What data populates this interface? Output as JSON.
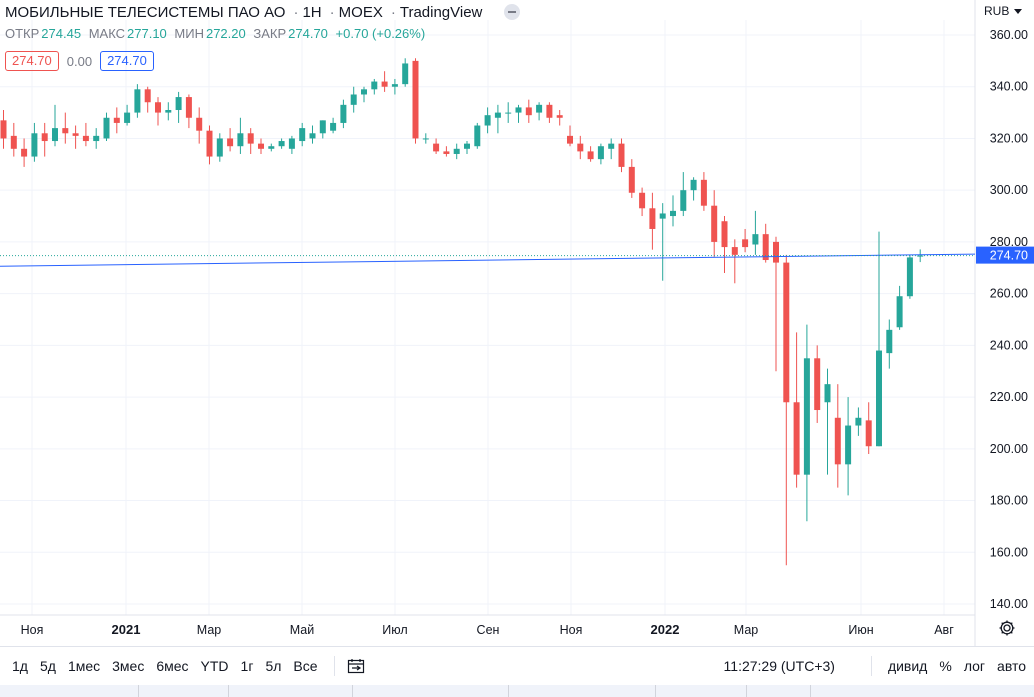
{
  "header": {
    "title": "МОБИЛЬНЫЕ ТЕЛЕСИСТЕМЫ ПАО АО",
    "interval": "1Н",
    "exchange": "MOEX",
    "source": "TradingView"
  },
  "ohlc": {
    "open_label": "ОТКР",
    "open": "274.45",
    "high_label": "МАКС",
    "high": "277.10",
    "low_label": "МИН",
    "low": "272.20",
    "close_label": "ЗАКР",
    "close": "274.70",
    "change": "+0.70 (+0.26%)"
  },
  "price_boxes": {
    "bid": "274.70",
    "spread": "0.00",
    "ask": "274.70"
  },
  "currency": "RUB",
  "toolbar": {
    "ranges": [
      "1д",
      "5д",
      "1мес",
      "3мес",
      "6мес",
      "YTD",
      "1г",
      "5л",
      "Все"
    ],
    "time": "11:27:29 (UTC+3)",
    "dividends": "дивид",
    "percent": "%",
    "log": "лог",
    "auto": "авто"
  },
  "colors": {
    "up": "#26a69a",
    "down": "#ef5350",
    "line": "#2962ff",
    "grid": "#f0f3fa"
  },
  "chart_data": {
    "type": "candlestick",
    "title": "МОБИЛЬНЫЕ ТЕЛЕСИСТЕМЫ ПАО АО · 1Н · MOEX",
    "ylim": [
      140,
      360
    ],
    "y_ticks": [
      "360.00",
      "340.00",
      "320.00",
      "300.00",
      "280.00",
      "260.00",
      "240.00",
      "220.00",
      "200.00",
      "180.00",
      "160.00",
      "140.00"
    ],
    "x_ticks": [
      {
        "label": "Ноя",
        "bold": false
      },
      {
        "label": "2021",
        "bold": true
      },
      {
        "label": "Мар",
        "bold": false
      },
      {
        "label": "Май",
        "bold": false
      },
      {
        "label": "Июл",
        "bold": false
      },
      {
        "label": "Сен",
        "bold": false
      },
      {
        "label": "Ноя",
        "bold": false
      },
      {
        "label": "2022",
        "bold": true
      },
      {
        "label": "Мар",
        "bold": false
      },
      {
        "label": "Июн",
        "bold": false
      },
      {
        "label": "Авг",
        "bold": false
      }
    ],
    "last_price": "274.70",
    "candles": [
      [
        327,
        331,
        316,
        320
      ],
      [
        321,
        326,
        313,
        316
      ],
      [
        316,
        320,
        309,
        313
      ],
      [
        313,
        326,
        311,
        322
      ],
      [
        322,
        326,
        313,
        319
      ],
      [
        319,
        333,
        317,
        324
      ],
      [
        324,
        330,
        318,
        322
      ],
      [
        322,
        325,
        316,
        321
      ],
      [
        321,
        326,
        317,
        319
      ],
      [
        319,
        324,
        316,
        321
      ],
      [
        320,
        330,
        319,
        328
      ],
      [
        328,
        332,
        322,
        326
      ],
      [
        326,
        333,
        325,
        330
      ],
      [
        330,
        341,
        328,
        339
      ],
      [
        339,
        340,
        330,
        334
      ],
      [
        334,
        336,
        325,
        330
      ],
      [
        330,
        334,
        327,
        331
      ],
      [
        331,
        338,
        326,
        336
      ],
      [
        336,
        337,
        324,
        328
      ],
      [
        328,
        332,
        318,
        323
      ],
      [
        323,
        325,
        310,
        313
      ],
      [
        313,
        322,
        311,
        320
      ],
      [
        320,
        324,
        315,
        317
      ],
      [
        317,
        328,
        314,
        322
      ],
      [
        322,
        324,
        314,
        318
      ],
      [
        318,
        320,
        314,
        316
      ],
      [
        316,
        318,
        315,
        317
      ],
      [
        317,
        320,
        316,
        319
      ],
      [
        316,
        321,
        314,
        320
      ],
      [
        319,
        326,
        317,
        324
      ],
      [
        320,
        325,
        318,
        322
      ],
      [
        322,
        327,
        320,
        327
      ],
      [
        323,
        328,
        322,
        326
      ],
      [
        326,
        335,
        324,
        333
      ],
      [
        333,
        340,
        330,
        337
      ],
      [
        337,
        340,
        334,
        339
      ],
      [
        339,
        343,
        337,
        342
      ],
      [
        342,
        346,
        338,
        340
      ],
      [
        340,
        343,
        337,
        341
      ],
      [
        341,
        351,
        340,
        349
      ],
      [
        350,
        351,
        318,
        320
      ],
      [
        320,
        322,
        318,
        320
      ],
      [
        318,
        320,
        314,
        315
      ],
      [
        315,
        317,
        313,
        314
      ],
      [
        314,
        318,
        312,
        316
      ],
      [
        316,
        319,
        314,
        318
      ],
      [
        317,
        326,
        316,
        325
      ],
      [
        325,
        332,
        322,
        329
      ],
      [
        328,
        333,
        322,
        330
      ],
      [
        330,
        334,
        326,
        330
      ],
      [
        330,
        333,
        326,
        332
      ],
      [
        332,
        335,
        326,
        329
      ],
      [
        330,
        334,
        327,
        333
      ],
      [
        333,
        334,
        326,
        328
      ],
      [
        329,
        331,
        325,
        328
      ],
      [
        321,
        325,
        317,
        318
      ],
      [
        318,
        321,
        312,
        315
      ],
      [
        315,
        317,
        311,
        312
      ],
      [
        312,
        318,
        310,
        317
      ],
      [
        316,
        320,
        312,
        318
      ],
      [
        318,
        320,
        307,
        309
      ],
      [
        309,
        312,
        297,
        299
      ],
      [
        299,
        301,
        290,
        293
      ],
      [
        293,
        299,
        277,
        285
      ],
      [
        289,
        295,
        265,
        291
      ],
      [
        290,
        298,
        286,
        292
      ],
      [
        292,
        307,
        290,
        300
      ],
      [
        300,
        305,
        296,
        304
      ],
      [
        304,
        307,
        292,
        294
      ],
      [
        294,
        300,
        274,
        280
      ],
      [
        288,
        290,
        268,
        278
      ],
      [
        278,
        281,
        264,
        275
      ],
      [
        281,
        285,
        276,
        278
      ],
      [
        279,
        292,
        275,
        283
      ],
      [
        283,
        287,
        272,
        273
      ],
      [
        280,
        282,
        230,
        272
      ],
      [
        272,
        275,
        155,
        218
      ],
      [
        218,
        245,
        185,
        190
      ],
      [
        190,
        248,
        172,
        235
      ],
      [
        235,
        240,
        210,
        215
      ],
      [
        218,
        231,
        190,
        225
      ],
      [
        212,
        225,
        185,
        194
      ],
      [
        194,
        220,
        182,
        209
      ],
      [
        209,
        216,
        205,
        212
      ],
      [
        211,
        218,
        198,
        201
      ],
      [
        201,
        284,
        201,
        238
      ],
      [
        237,
        250,
        231,
        246
      ],
      [
        247,
        263,
        246,
        259
      ],
      [
        259,
        275,
        258,
        274
      ],
      [
        274.45,
        277.1,
        272.2,
        274.7
      ]
    ]
  }
}
